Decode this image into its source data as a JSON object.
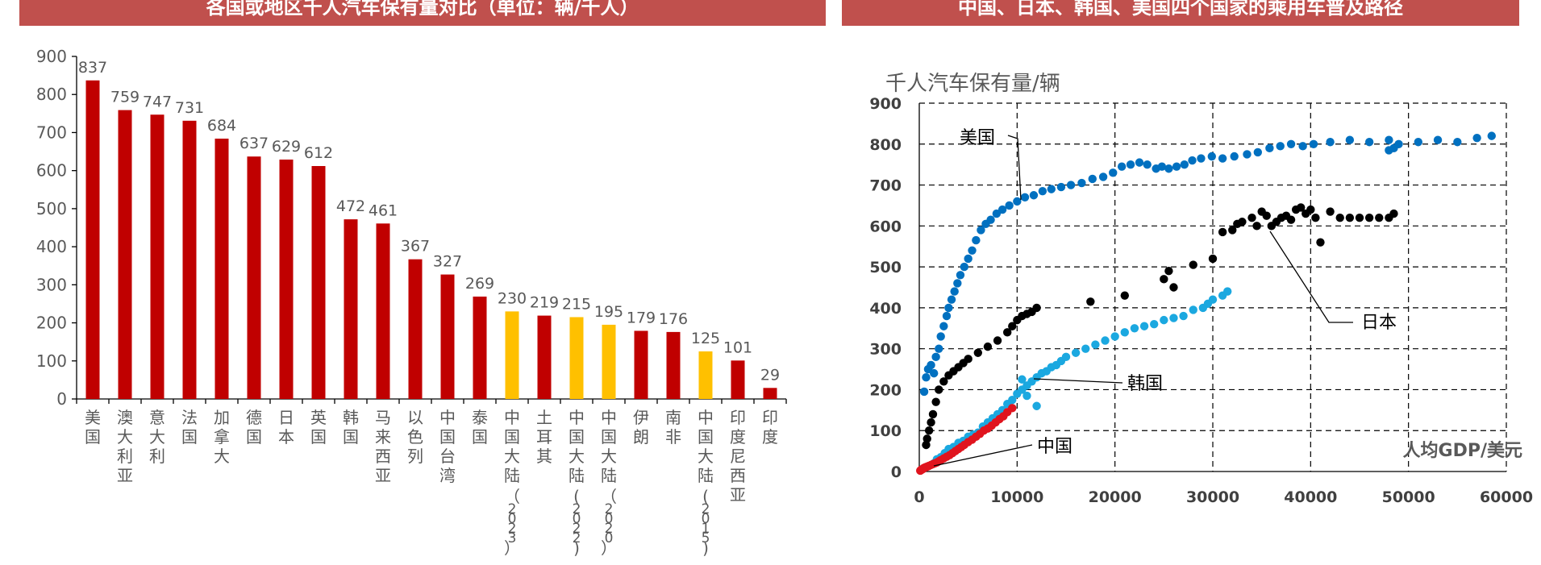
{
  "left_title": "各国或地区千人汽车保有量对比（单位：辆/千人）",
  "right_title": "中国、日本、韩国、美国四个国家的乘用车普及路径",
  "colors": {
    "title_bg": "#c0504d",
    "red_bar": "#c00000",
    "yellow_bar": "#ffc000",
    "usa": "#0070c0",
    "japan": "#000000",
    "korea": "#1ba8e0",
    "china": "#e0141e"
  },
  "chart_data": [
    {
      "type": "bar",
      "title": "各国或地区千人汽车保有量对比（单位：辆/千人）",
      "categories": [
        "美国",
        "澳大利亚",
        "意大利",
        "法国",
        "加拿大",
        "德国",
        "日本",
        "英国",
        "韩国",
        "马来西亚",
        "以色列",
        "中国台湾",
        "泰国",
        "中国大陆（2023）",
        "土耳其",
        "中国大陆(2022)",
        "中国大陆（2020）",
        "伊朗",
        "南非",
        "中国大陆(2015)",
        "印度尼西亚",
        "印度"
      ],
      "values": [
        837,
        759,
        747,
        731,
        684,
        637,
        629,
        612,
        472,
        461,
        367,
        327,
        269,
        230,
        219,
        215,
        195,
        179,
        176,
        125,
        101,
        29
      ],
      "highlight": [
        "red",
        "red",
        "red",
        "red",
        "red",
        "red",
        "red",
        "red",
        "red",
        "red",
        "red",
        "red",
        "red",
        "yellow",
        "red",
        "yellow",
        "yellow",
        "red",
        "red",
        "yellow",
        "red",
        "red"
      ],
      "ylim": [
        0,
        900
      ],
      "yticks": [
        0,
        100,
        200,
        300,
        400,
        500,
        600,
        700,
        800,
        900
      ]
    },
    {
      "type": "scatter",
      "title": "中国、日本、韩国、美国四个国家的乘用车普及路径",
      "ylabel": "千人汽车保有量/辆",
      "xlabel": "人均GDP/美元",
      "xlim": [
        0,
        60000
      ],
      "ylim": [
        0,
        900
      ],
      "xticks": [
        0,
        10000,
        20000,
        30000,
        40000,
        50000,
        60000
      ],
      "yticks": [
        0,
        100,
        200,
        300,
        400,
        500,
        600,
        700,
        800,
        900
      ],
      "grid": true,
      "series": [
        {
          "name": "美国",
          "color": "#0070c0",
          "x": [
            500,
            700,
            900,
            1200,
            1500,
            1700,
            2000,
            2200,
            2500,
            2800,
            3000,
            3300,
            3600,
            3900,
            4200,
            4600,
            5000,
            5400,
            5800,
            6300,
            6800,
            7300,
            7900,
            8500,
            9200,
            10000,
            10800,
            11700,
            12600,
            13500,
            14500,
            15500,
            16600,
            17700,
            18800,
            19800,
            20700,
            21600,
            22500,
            23300,
            24200,
            24800,
            25500,
            26300,
            27100,
            27900,
            28800,
            29900,
            31000,
            32200,
            33500,
            34600,
            35800,
            36900,
            38000,
            39200,
            40300,
            42000,
            44000,
            46000,
            48000,
            49000,
            51000,
            53000,
            55000,
            57000,
            58500,
            48000,
            48500
          ],
          "y": [
            195,
            230,
            250,
            260,
            240,
            280,
            300,
            330,
            355,
            380,
            400,
            420,
            440,
            460,
            480,
            500,
            520,
            540,
            565,
            590,
            605,
            615,
            630,
            640,
            650,
            660,
            670,
            675,
            685,
            690,
            695,
            700,
            705,
            715,
            720,
            730,
            745,
            750,
            755,
            750,
            740,
            745,
            740,
            745,
            750,
            760,
            765,
            770,
            765,
            770,
            775,
            780,
            790,
            795,
            800,
            795,
            800,
            805,
            810,
            805,
            810,
            800,
            805,
            810,
            805,
            815,
            820,
            785,
            790
          ]
        },
        {
          "name": "日本",
          "color": "#000000",
          "x": [
            700,
            800,
            1000,
            1200,
            1400,
            1700,
            2000,
            2500,
            3000,
            3500,
            4000,
            4500,
            5000,
            6000,
            7000,
            8000,
            9000,
            9500,
            10000,
            10500,
            11000,
            11500,
            12000,
            17500,
            21000,
            25000,
            25500,
            26000,
            28000,
            30000,
            31000,
            32000,
            32500,
            33000,
            34000,
            34500,
            35000,
            35500,
            36000,
            36500,
            37000,
            37500,
            38000,
            38500,
            39000,
            39500,
            40000,
            40500,
            41000,
            42000,
            43000,
            44000,
            45000,
            46000,
            47000,
            48000,
            48500
          ],
          "y": [
            65,
            80,
            100,
            120,
            140,
            170,
            200,
            220,
            235,
            245,
            255,
            265,
            275,
            290,
            305,
            320,
            340,
            355,
            370,
            380,
            385,
            390,
            400,
            415,
            430,
            470,
            490,
            450,
            505,
            520,
            585,
            590,
            605,
            610,
            620,
            600,
            635,
            625,
            600,
            610,
            620,
            625,
            615,
            640,
            645,
            630,
            640,
            620,
            560,
            635,
            620,
            620,
            620,
            620,
            620,
            620,
            630
          ]
        },
        {
          "name": "韩国",
          "color": "#1ba8e0",
          "x": [
            1500,
            1800,
            2200,
            2600,
            3000,
            3500,
            4000,
            4500,
            5000,
            5500,
            6000,
            6500,
            7000,
            7500,
            8000,
            8500,
            9000,
            9500,
            10000,
            10500,
            11000,
            11500,
            12000,
            12500,
            13000,
            13500,
            14000,
            14500,
            15000,
            16000,
            17000,
            18000,
            19000,
            20000,
            21000,
            22000,
            23000,
            24000,
            25000,
            26000,
            27000,
            28000,
            29000,
            29500,
            30000,
            31000,
            31500,
            10500,
            11000,
            12000
          ],
          "y": [
            20,
            30,
            35,
            45,
            55,
            60,
            70,
            75,
            85,
            90,
            95,
            110,
            120,
            130,
            140,
            150,
            165,
            175,
            190,
            200,
            210,
            220,
            230,
            240,
            245,
            255,
            260,
            270,
            280,
            290,
            300,
            310,
            320,
            330,
            340,
            350,
            355,
            360,
            370,
            375,
            380,
            395,
            400,
            410,
            420,
            430,
            440,
            225,
            185,
            160
          ]
        },
        {
          "name": "中国",
          "color": "#e0141e",
          "x": [
            100,
            150,
            200,
            250,
            300,
            350,
            400,
            450,
            500,
            600,
            700,
            800,
            900,
            1000,
            1200,
            1400,
            1600,
            1800,
            2000,
            2200,
            2500,
            2800,
            3100,
            3400,
            3700,
            4000,
            4300,
            4600,
            5000,
            5400,
            5800,
            6200,
            6600,
            7000,
            7400,
            7800,
            8200,
            8600,
            9000,
            9500
          ],
          "y": [
            2,
            3,
            4,
            5,
            5,
            6,
            7,
            8,
            9,
            10,
            11,
            12,
            13,
            14,
            16,
            18,
            20,
            22,
            25,
            28,
            32,
            36,
            40,
            45,
            50,
            55,
            60,
            65,
            72,
            78,
            85,
            92,
            100,
            105,
            112,
            120,
            128,
            135,
            145,
            155
          ]
        }
      ],
      "annotations": [
        "美国",
        "日本",
        "韩国",
        "中国"
      ]
    }
  ]
}
